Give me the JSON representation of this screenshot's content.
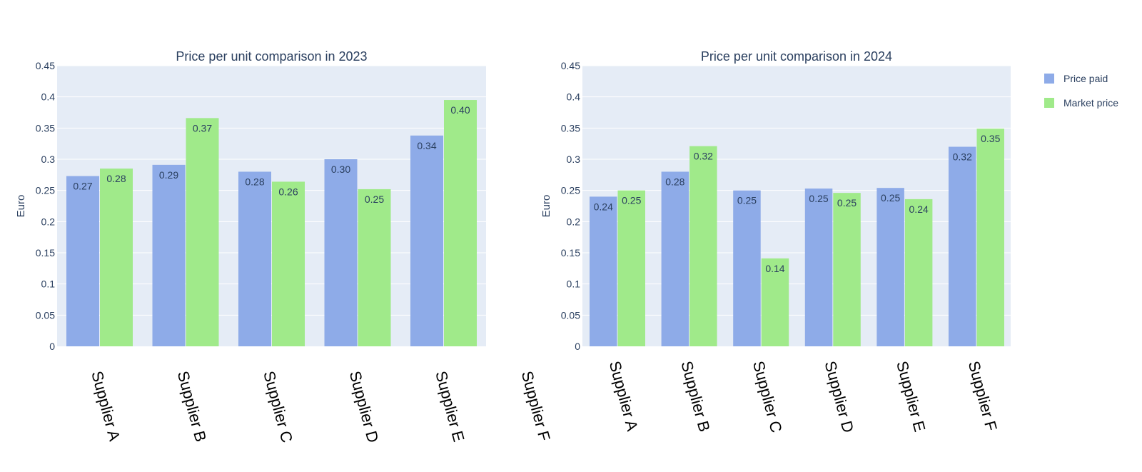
{
  "colors": {
    "plot_background": "#e5ecf6",
    "gridline": "#ffffff",
    "price_paid": "#8eabe8",
    "market_price": "#a0ea8a"
  },
  "legend": {
    "items": [
      {
        "label": "Price paid",
        "color": "#8eabe8"
      },
      {
        "label": "Market price",
        "color": "#a0ea8a"
      }
    ],
    "placement": "top-right"
  },
  "chart_data": [
    {
      "type": "bar",
      "title": "Price per unit comparison in 2023",
      "xlabel": "",
      "ylabel": "Euro",
      "ylim": [
        0,
        0.45
      ],
      "yticks": [
        "0",
        "0.05",
        "0.1",
        "0.15",
        "0.2",
        "0.25",
        "0.3",
        "0.35",
        "0.4",
        "0.45"
      ],
      "grid": true,
      "categories": [
        "Supplier A",
        "Supplier B",
        "Supplier C",
        "Supplier D",
        "Supplier E",
        "Supplier F"
      ],
      "series": [
        {
          "name": "Price paid",
          "values": [
            0.273,
            0.291,
            0.28,
            0.3,
            0.338,
            null
          ],
          "labels": [
            "0.27",
            "0.29",
            "0.28",
            "0.30",
            "0.34",
            null
          ]
        },
        {
          "name": "Market price",
          "values": [
            0.285,
            0.366,
            0.264,
            0.252,
            0.395,
            null
          ],
          "labels": [
            "0.28",
            "0.37",
            "0.26",
            "0.25",
            "0.40",
            null
          ]
        }
      ]
    },
    {
      "type": "bar",
      "title": "Price per unit comparison in 2024",
      "xlabel": "",
      "ylabel": "Euro",
      "ylim": [
        0,
        0.45
      ],
      "yticks": [
        "0",
        "0.05",
        "0.1",
        "0.15",
        "0.2",
        "0.25",
        "0.3",
        "0.35",
        "0.4",
        "0.45"
      ],
      "grid": true,
      "categories": [
        "Supplier A",
        "Supplier B",
        "Supplier C",
        "Supplier D",
        "Supplier E",
        "Supplier F"
      ],
      "series": [
        {
          "name": "Price paid",
          "values": [
            0.24,
            0.28,
            0.25,
            0.253,
            0.254,
            0.32
          ],
          "labels": [
            "0.24",
            "0.28",
            "0.25",
            "0.25",
            "0.25",
            "0.32"
          ]
        },
        {
          "name": "Market price",
          "values": [
            0.25,
            0.321,
            0.141,
            0.246,
            0.236,
            0.349
          ],
          "labels": [
            "0.25",
            "0.32",
            "0.14",
            "0.25",
            "0.24",
            "0.35"
          ]
        }
      ]
    }
  ]
}
